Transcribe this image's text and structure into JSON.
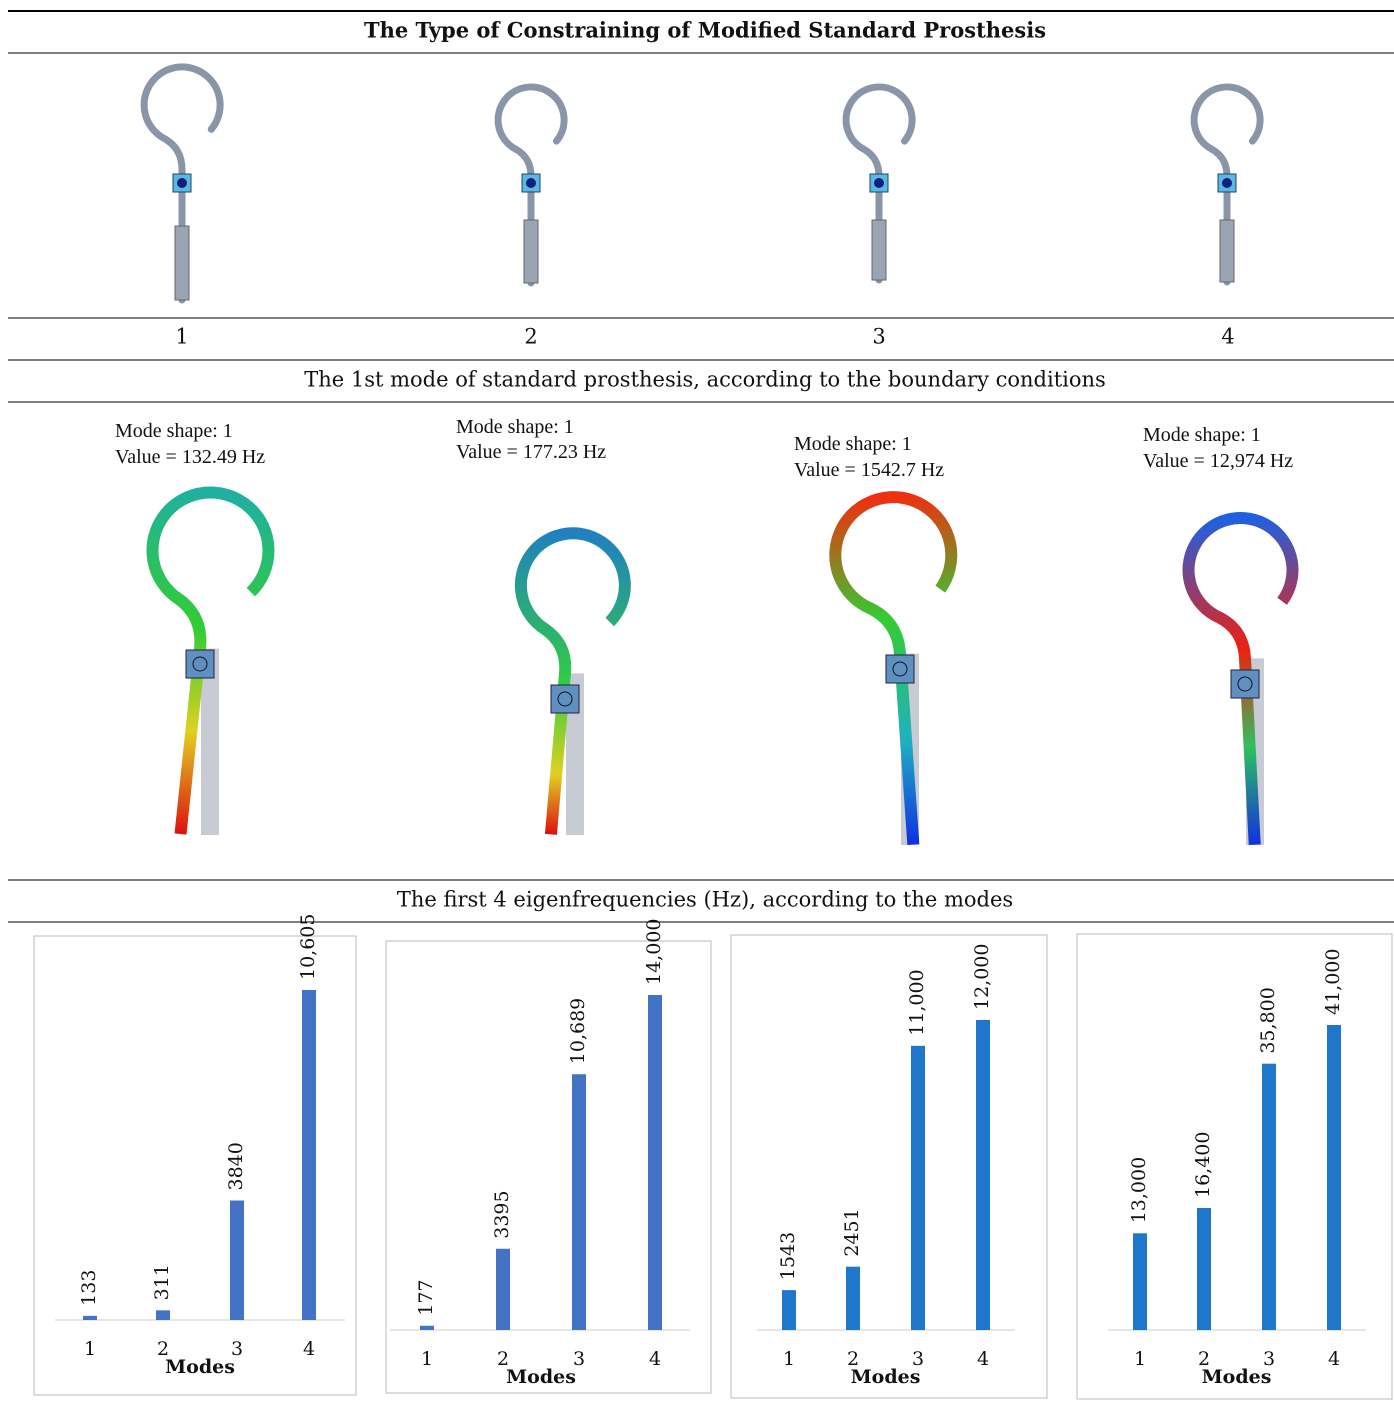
{
  "table": {
    "header": {
      "title": "The Type of Constraining of Modified Standard Prosthesis"
    },
    "columns": [
      "1",
      "2",
      "3",
      "4"
    ],
    "section2": "The 1st mode of standard prosthesis, according to the boundary conditions",
    "modes": [
      {
        "label": "Mode shape: 1",
        "value": "Value = 132.49 Hz"
      },
      {
        "label": "Mode shape: 1",
        "value": "Value = 177.23 Hz"
      },
      {
        "label": "Mode shape: 1",
        "value": "Value = 1542.7 Hz"
      },
      {
        "label": "Mode shape: 1",
        "value": "Value = 12,974 Hz"
      }
    ],
    "section3": "The first 4 eigenfrequencies (Hz), according to the modes"
  },
  "chart_data": [
    {
      "type": "bar",
      "categories": [
        "1",
        "2",
        "3",
        "4"
      ],
      "values": [
        133,
        311,
        3840,
        10605
      ],
      "value_labels": [
        "133",
        "311",
        "3840",
        "10,605"
      ],
      "color": "#4472c4",
      "x_label": "Modes"
    },
    {
      "type": "bar",
      "categories": [
        "1",
        "2",
        "3",
        "4"
      ],
      "values": [
        177,
        3395,
        10689,
        14000
      ],
      "value_labels": [
        "177",
        "3395",
        "10,689",
        "14,000"
      ],
      "color": "#4472c4",
      "x_label": "Modes"
    },
    {
      "type": "bar",
      "categories": [
        "1",
        "2",
        "3",
        "4"
      ],
      "values": [
        1543,
        2451,
        11000,
        12000
      ],
      "value_labels": [
        "1543",
        "2451",
        "11,000",
        "12,000"
      ],
      "color": "#1f77cc",
      "x_label": "Modes"
    },
    {
      "type": "bar",
      "categories": [
        "1",
        "2",
        "3",
        "4"
      ],
      "values": [
        13000,
        16400,
        35800,
        41000
      ],
      "value_labels": [
        "13,000",
        "16,400",
        "35,800",
        "41,000"
      ],
      "color": "#1f77cc",
      "x_label": "Modes"
    }
  ]
}
